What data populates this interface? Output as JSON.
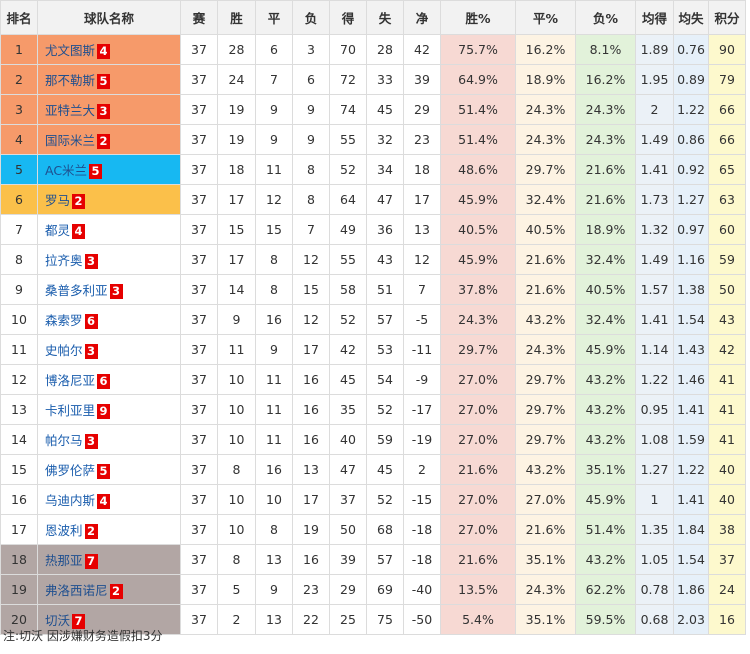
{
  "headers": [
    "排名",
    "球队名称",
    "赛",
    "胜",
    "平",
    "负",
    "得",
    "失",
    "净",
    "胜%",
    "平%",
    "负%",
    "均得",
    "均失",
    "积分"
  ],
  "rows": [
    {
      "rank": "1",
      "team": "尤文图斯",
      "badge": "4",
      "zone": "cl",
      "played": "37",
      "won": "28",
      "drawn": "6",
      "lost": "3",
      "gf": "70",
      "ga": "28",
      "gd": "42",
      "win_pct": "75.7%",
      "draw_pct": "16.2%",
      "loss_pct": "8.1%",
      "avg_for": "1.89",
      "avg_against": "0.76",
      "points": "90"
    },
    {
      "rank": "2",
      "team": "那不勒斯",
      "badge": "5",
      "zone": "cl",
      "played": "37",
      "won": "24",
      "drawn": "7",
      "lost": "6",
      "gf": "72",
      "ga": "33",
      "gd": "39",
      "win_pct": "64.9%",
      "draw_pct": "18.9%",
      "loss_pct": "16.2%",
      "avg_for": "1.95",
      "avg_against": "0.89",
      "points": "79"
    },
    {
      "rank": "3",
      "team": "亚特兰大",
      "badge": "3",
      "zone": "cl",
      "played": "37",
      "won": "19",
      "drawn": "9",
      "lost": "9",
      "gf": "74",
      "ga": "45",
      "gd": "29",
      "win_pct": "51.4%",
      "draw_pct": "24.3%",
      "loss_pct": "24.3%",
      "avg_for": "2",
      "avg_against": "1.22",
      "points": "66"
    },
    {
      "rank": "4",
      "team": "国际米兰",
      "badge": "2",
      "zone": "cl",
      "played": "37",
      "won": "19",
      "drawn": "9",
      "lost": "9",
      "gf": "55",
      "ga": "32",
      "gd": "23",
      "win_pct": "51.4%",
      "draw_pct": "24.3%",
      "loss_pct": "24.3%",
      "avg_for": "1.49",
      "avg_against": "0.86",
      "points": "66"
    },
    {
      "rank": "5",
      "team": "AC米兰",
      "badge": "5",
      "zone": "el",
      "played": "37",
      "won": "18",
      "drawn": "11",
      "lost": "8",
      "gf": "52",
      "ga": "34",
      "gd": "18",
      "win_pct": "48.6%",
      "draw_pct": "29.7%",
      "loss_pct": "21.6%",
      "avg_for": "1.41",
      "avg_against": "0.92",
      "points": "65"
    },
    {
      "rank": "6",
      "team": "罗马",
      "badge": "2",
      "zone": "ecl",
      "played": "37",
      "won": "17",
      "drawn": "12",
      "lost": "8",
      "gf": "64",
      "ga": "47",
      "gd": "17",
      "win_pct": "45.9%",
      "draw_pct": "32.4%",
      "loss_pct": "21.6%",
      "avg_for": "1.73",
      "avg_against": "1.27",
      "points": "63"
    },
    {
      "rank": "7",
      "team": "都灵",
      "badge": "4",
      "zone": "",
      "played": "37",
      "won": "15",
      "drawn": "15",
      "lost": "7",
      "gf": "49",
      "ga": "36",
      "gd": "13",
      "win_pct": "40.5%",
      "draw_pct": "40.5%",
      "loss_pct": "18.9%",
      "avg_for": "1.32",
      "avg_against": "0.97",
      "points": "60"
    },
    {
      "rank": "8",
      "team": "拉齐奥",
      "badge": "3",
      "zone": "",
      "played": "37",
      "won": "17",
      "drawn": "8",
      "lost": "12",
      "gf": "55",
      "ga": "43",
      "gd": "12",
      "win_pct": "45.9%",
      "draw_pct": "21.6%",
      "loss_pct": "32.4%",
      "avg_for": "1.49",
      "avg_against": "1.16",
      "points": "59"
    },
    {
      "rank": "9",
      "team": "桑普多利亚",
      "badge": "3",
      "zone": "",
      "played": "37",
      "won": "14",
      "drawn": "8",
      "lost": "15",
      "gf": "58",
      "ga": "51",
      "gd": "7",
      "win_pct": "37.8%",
      "draw_pct": "21.6%",
      "loss_pct": "40.5%",
      "avg_for": "1.57",
      "avg_against": "1.38",
      "points": "50"
    },
    {
      "rank": "10",
      "team": "森索罗",
      "badge": "6",
      "zone": "",
      "played": "37",
      "won": "9",
      "drawn": "16",
      "lost": "12",
      "gf": "52",
      "ga": "57",
      "gd": "-5",
      "win_pct": "24.3%",
      "draw_pct": "43.2%",
      "loss_pct": "32.4%",
      "avg_for": "1.41",
      "avg_against": "1.54",
      "points": "43"
    },
    {
      "rank": "11",
      "team": "史帕尔",
      "badge": "3",
      "zone": "",
      "played": "37",
      "won": "11",
      "drawn": "9",
      "lost": "17",
      "gf": "42",
      "ga": "53",
      "gd": "-11",
      "win_pct": "29.7%",
      "draw_pct": "24.3%",
      "loss_pct": "45.9%",
      "avg_for": "1.14",
      "avg_against": "1.43",
      "points": "42"
    },
    {
      "rank": "12",
      "team": "博洛尼亚",
      "badge": "6",
      "zone": "",
      "played": "37",
      "won": "10",
      "drawn": "11",
      "lost": "16",
      "gf": "45",
      "ga": "54",
      "gd": "-9",
      "win_pct": "27.0%",
      "draw_pct": "29.7%",
      "loss_pct": "43.2%",
      "avg_for": "1.22",
      "avg_against": "1.46",
      "points": "41"
    },
    {
      "rank": "13",
      "team": "卡利亚里",
      "badge": "9",
      "zone": "",
      "played": "37",
      "won": "10",
      "drawn": "11",
      "lost": "16",
      "gf": "35",
      "ga": "52",
      "gd": "-17",
      "win_pct": "27.0%",
      "draw_pct": "29.7%",
      "loss_pct": "43.2%",
      "avg_for": "0.95",
      "avg_against": "1.41",
      "points": "41"
    },
    {
      "rank": "14",
      "team": "帕尔马",
      "badge": "3",
      "zone": "",
      "played": "37",
      "won": "10",
      "drawn": "11",
      "lost": "16",
      "gf": "40",
      "ga": "59",
      "gd": "-19",
      "win_pct": "27.0%",
      "draw_pct": "29.7%",
      "loss_pct": "43.2%",
      "avg_for": "1.08",
      "avg_against": "1.59",
      "points": "41"
    },
    {
      "rank": "15",
      "team": "佛罗伦萨",
      "badge": "5",
      "zone": "",
      "played": "37",
      "won": "8",
      "drawn": "16",
      "lost": "13",
      "gf": "47",
      "ga": "45",
      "gd": "2",
      "win_pct": "21.6%",
      "draw_pct": "43.2%",
      "loss_pct": "35.1%",
      "avg_for": "1.27",
      "avg_against": "1.22",
      "points": "40"
    },
    {
      "rank": "16",
      "team": "乌迪内斯",
      "badge": "4",
      "zone": "",
      "played": "37",
      "won": "10",
      "drawn": "10",
      "lost": "17",
      "gf": "37",
      "ga": "52",
      "gd": "-15",
      "win_pct": "27.0%",
      "draw_pct": "27.0%",
      "loss_pct": "45.9%",
      "avg_for": "1",
      "avg_against": "1.41",
      "points": "40"
    },
    {
      "rank": "17",
      "team": "恩波利",
      "badge": "2",
      "zone": "",
      "played": "37",
      "won": "10",
      "drawn": "8",
      "lost": "19",
      "gf": "50",
      "ga": "68",
      "gd": "-18",
      "win_pct": "27.0%",
      "draw_pct": "21.6%",
      "loss_pct": "51.4%",
      "avg_for": "1.35",
      "avg_against": "1.84",
      "points": "38"
    },
    {
      "rank": "18",
      "team": "热那亚",
      "badge": "7",
      "zone": "rel",
      "played": "37",
      "won": "8",
      "drawn": "13",
      "lost": "16",
      "gf": "39",
      "ga": "57",
      "gd": "-18",
      "win_pct": "21.6%",
      "draw_pct": "35.1%",
      "loss_pct": "43.2%",
      "avg_for": "1.05",
      "avg_against": "1.54",
      "points": "37"
    },
    {
      "rank": "19",
      "team": "弗洛西诺尼",
      "badge": "2",
      "zone": "rel",
      "played": "37",
      "won": "5",
      "drawn": "9",
      "lost": "23",
      "gf": "29",
      "ga": "69",
      "gd": "-40",
      "win_pct": "13.5%",
      "draw_pct": "24.3%",
      "loss_pct": "62.2%",
      "avg_for": "0.78",
      "avg_against": "1.86",
      "points": "24"
    },
    {
      "rank": "20",
      "team": "切沃",
      "badge": "7",
      "zone": "rel",
      "played": "37",
      "won": "2",
      "drawn": "13",
      "lost": "22",
      "gf": "25",
      "ga": "75",
      "gd": "-50",
      "win_pct": "5.4%",
      "draw_pct": "35.1%",
      "loss_pct": "59.5%",
      "avg_for": "0.68",
      "avg_against": "2.03",
      "points": "16"
    }
  ],
  "colors": {
    "cl_zone": "#f69a6a",
    "el_zone": "#17b8f2",
    "ecl_zone": "#fbc04a",
    "relegation_zone": "#b2a6a4",
    "badge": "#e60000",
    "team_link": "#1a5dad",
    "win_pct_col": "#f7d9d3",
    "draw_pct_col": "#fdf3e3",
    "loss_pct_col": "#e2f2da",
    "avg_for_col": "#ebf1f7",
    "avg_against_col": "#e6f0f9",
    "points_col": "#fdf9cd"
  },
  "note": "注:切沃 因涉嫌财务造假扣3分"
}
